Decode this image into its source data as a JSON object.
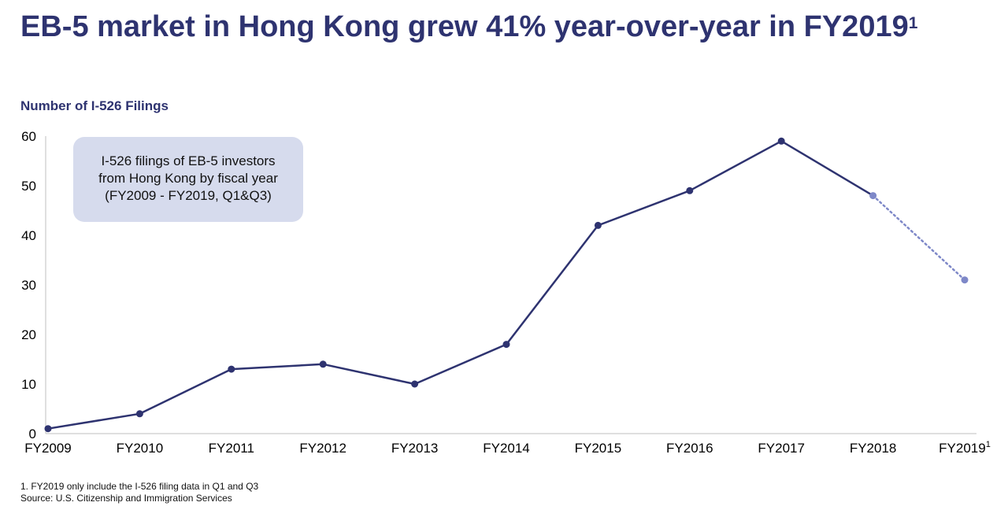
{
  "header": {
    "title_main": "EB-5 market in Hong Kong grew 41% year-over-year in FY2019",
    "title_sup": "1",
    "subtitle": "Number of I-526 Filings"
  },
  "callout": {
    "lines": [
      "I-526 filings of EB-5 investors",
      "from Hong Kong by fiscal year",
      "(FY2009 - FY2019, Q1&Q3)"
    ]
  },
  "footnotes": {
    "note": "1. FY2019 only include the I-526 filing data in Q1 and Q3",
    "source": "Source: U.S. Citizenship and Immigration Services"
  },
  "chart_data": {
    "type": "line",
    "title": "",
    "xlabel": "",
    "ylabel": "",
    "categories": [
      "FY2009",
      "FY2010",
      "FY2011",
      "FY2012",
      "FY2013",
      "FY2014",
      "FY2015",
      "FY2016",
      "FY2017",
      "FY2018",
      "FY2019"
    ],
    "category_superscripts": [
      "",
      "",
      "",
      "",
      "",
      "",
      "",
      "",
      "",
      "",
      "1"
    ],
    "series": [
      {
        "values": [
          1,
          4,
          13,
          14,
          10,
          18,
          42,
          49,
          59,
          48,
          31
        ]
      }
    ],
    "partial_segment": {
      "from": "FY2018",
      "to": "FY2019",
      "style": "dotted"
    },
    "ylim": [
      0,
      60
    ],
    "yticks": [
      0,
      10,
      20,
      30,
      40,
      50,
      60
    ],
    "grid": false,
    "legend": "none",
    "colors": {
      "line": "#2e3370",
      "partial": "#7e88c8",
      "axis": "#bfbfbf"
    }
  }
}
